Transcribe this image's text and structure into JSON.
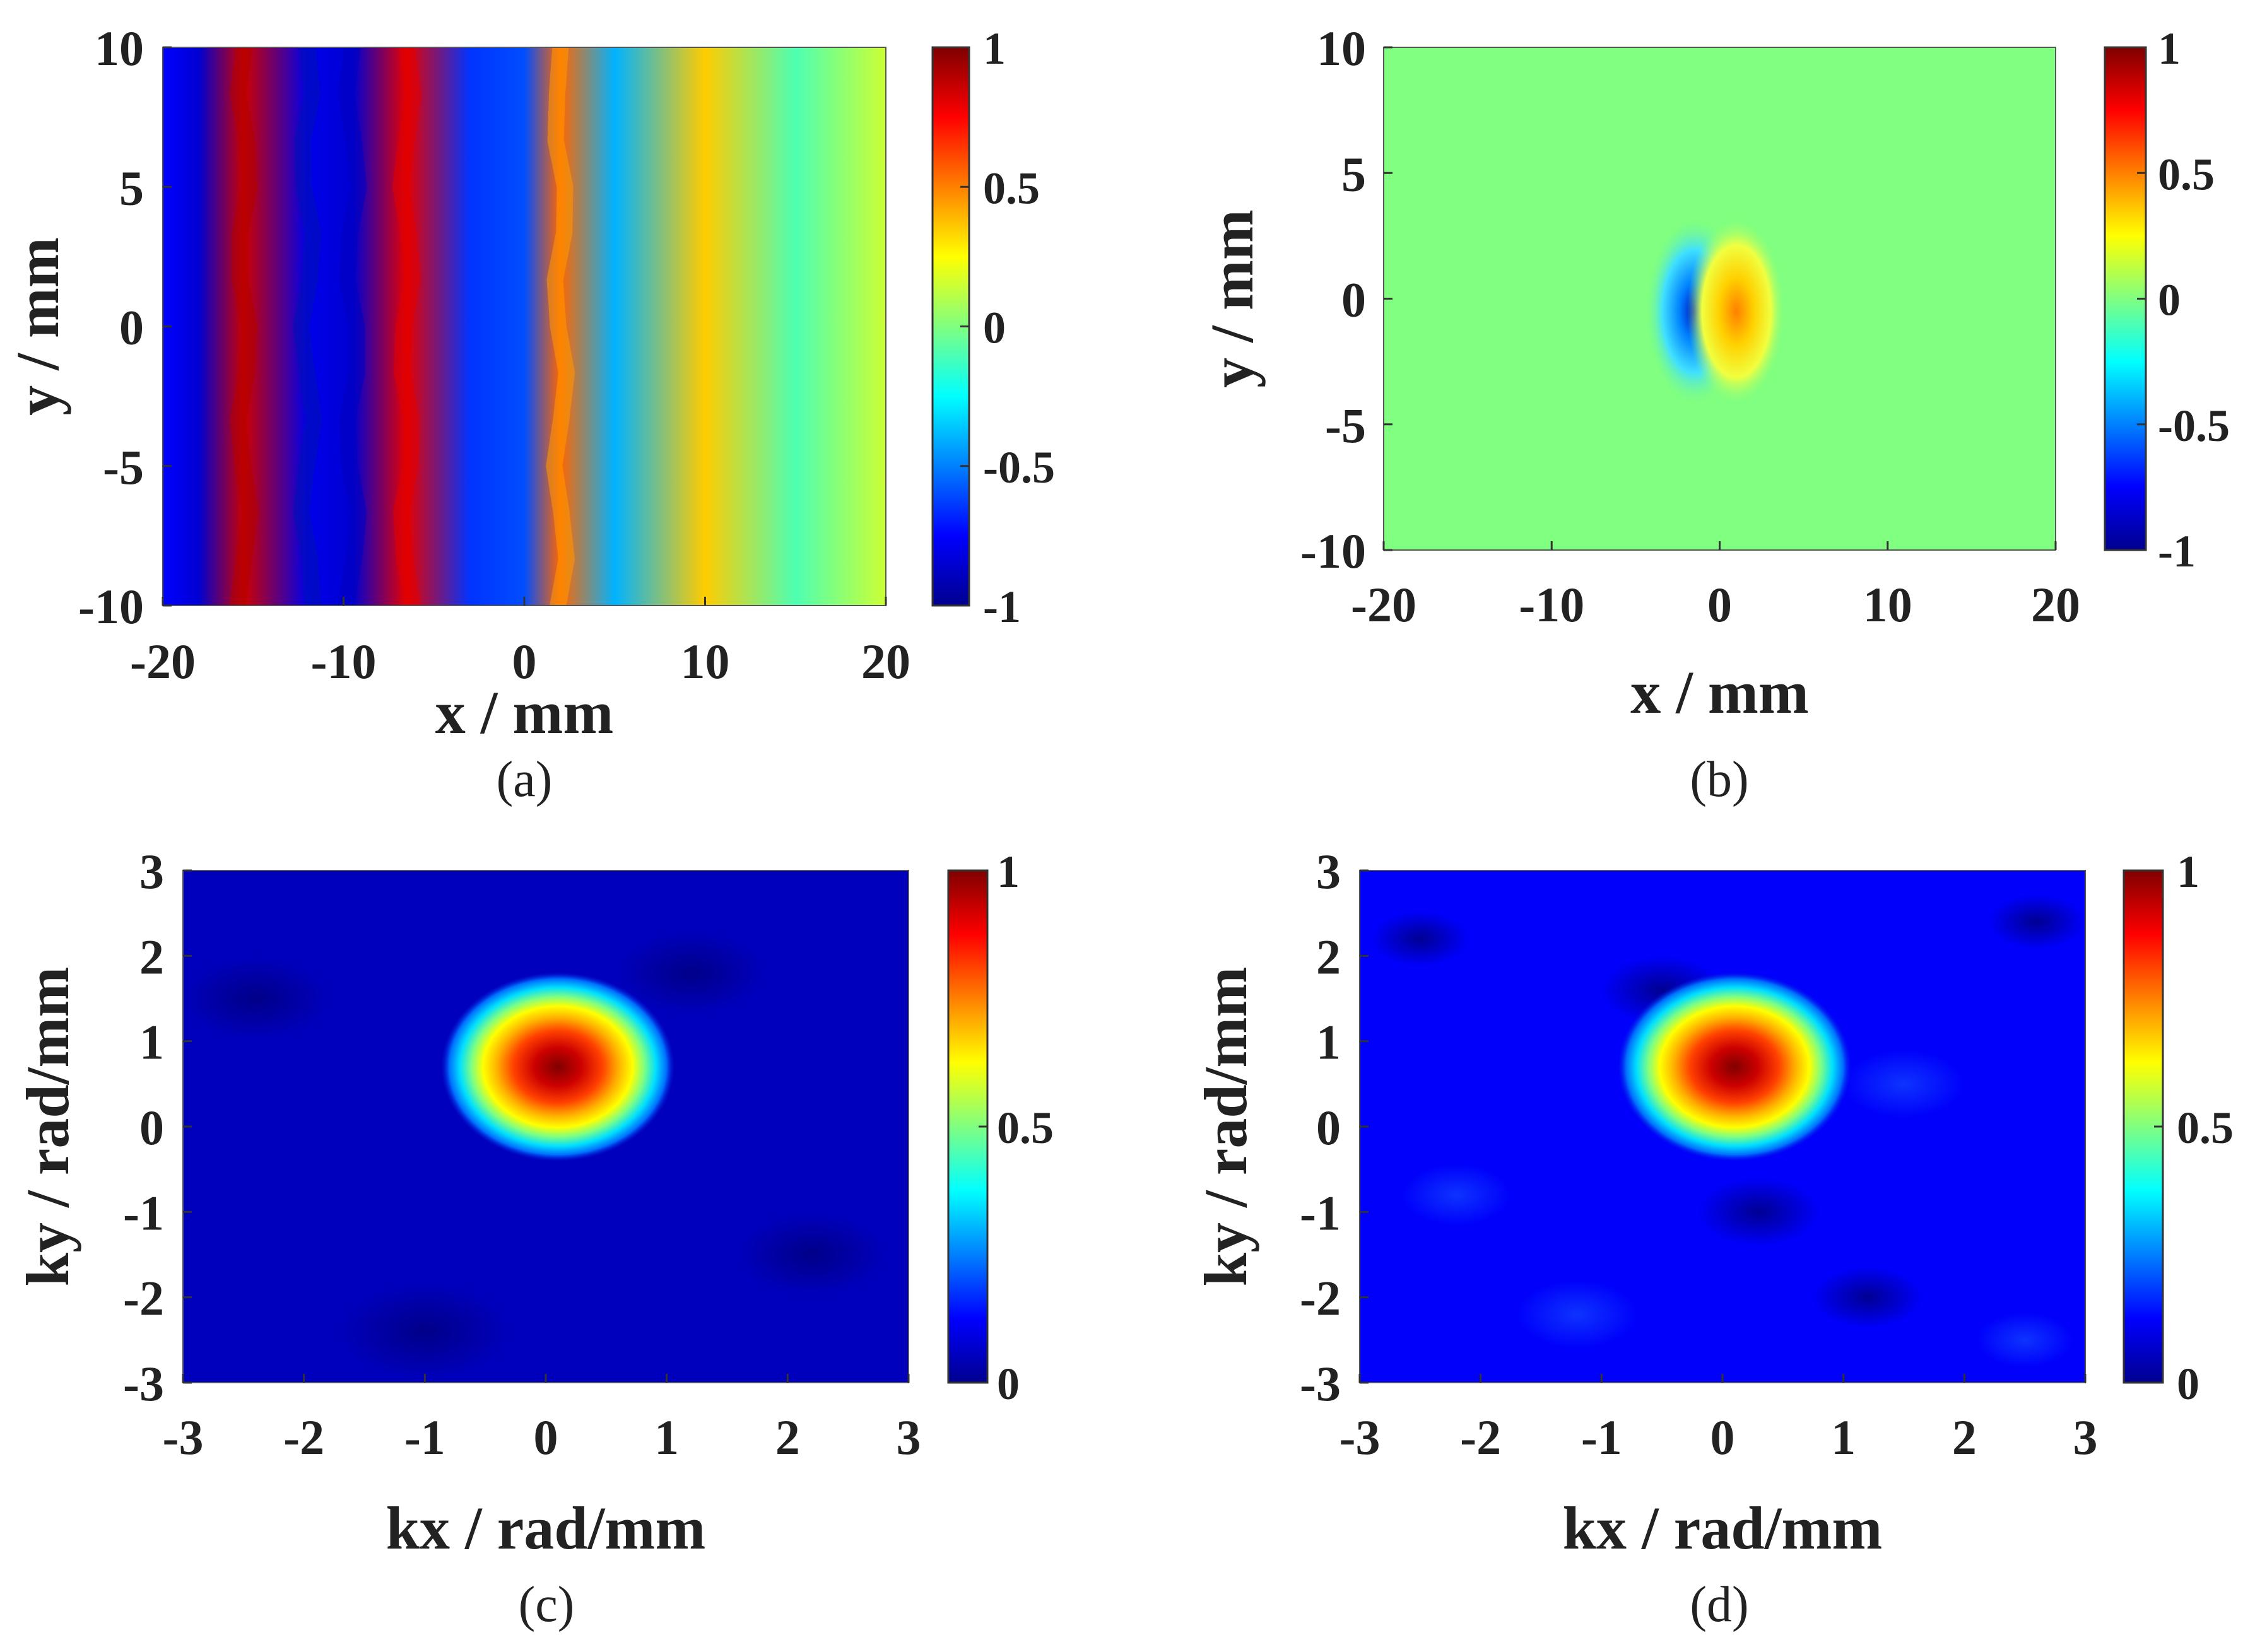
{
  "colormap": [
    "#00008f",
    "#0000ff",
    "#0080ff",
    "#00ffff",
    "#80ff80",
    "#ffff00",
    "#ff8000",
    "#ff0000",
    "#800000"
  ],
  "chart_data": [
    {
      "id": "a",
      "type": "heatmap",
      "panel_label": "(a)",
      "xlabel": "x / mm",
      "ylabel": "y / mm",
      "xlim": [
        -20,
        20
      ],
      "ylim": [
        -10,
        10
      ],
      "x_ticks": [
        "-20",
        "-10",
        "0",
        "10",
        "20"
      ],
      "y_ticks": [
        "10",
        "5",
        "0",
        "-5",
        "-10"
      ],
      "colorbar_range": [
        -1,
        1
      ],
      "colorbar_ticks": [
        "1",
        "0.5",
        "0",
        "-0.5",
        "-1"
      ],
      "field": "standing wave pattern along x, decaying amplitude for x > 5 mm",
      "profile_x": [
        -20,
        -18,
        -15.5,
        -12,
        -9.5,
        -6.5,
        -3,
        0,
        2,
        5,
        10,
        15,
        20
      ],
      "profile_values": [
        -0.75,
        -0.85,
        0.85,
        -0.8,
        -0.85,
        0.8,
        -0.65,
        -0.6,
        0.55,
        -0.4,
        0.35,
        -0.1,
        0.15
      ]
    },
    {
      "id": "b",
      "type": "heatmap",
      "panel_label": "(b)",
      "xlabel": "x / mm",
      "ylabel": "y / mm",
      "xlim": [
        -20,
        20
      ],
      "ylim": [
        -10,
        10
      ],
      "x_ticks": [
        "-20",
        "-10",
        "0",
        "10",
        "20"
      ],
      "y_ticks": [
        "10",
        "5",
        "0",
        "-5",
        "-10"
      ],
      "colorbar_range": [
        -1,
        1
      ],
      "colorbar_ticks": [
        "1",
        "0.5",
        "0",
        "-0.5",
        "-1"
      ],
      "field": "zero background with a dipole near origin",
      "features": [
        {
          "name": "negative lobe",
          "x": -1.5,
          "y": -0.5,
          "value": -0.9
        },
        {
          "name": "positive lobe",
          "x": 1,
          "y": -0.5,
          "value": 0.6
        }
      ]
    },
    {
      "id": "c",
      "type": "heatmap",
      "panel_label": "(c)",
      "xlabel": "kx / rad/mm",
      "ylabel": "ky / rad/mm",
      "xlim": [
        -3,
        3
      ],
      "ylim": [
        -3,
        3
      ],
      "x_ticks": [
        "-3",
        "-2",
        "-1",
        "0",
        "1",
        "2",
        "3"
      ],
      "y_ticks": [
        "3",
        "2",
        "1",
        "0",
        "-1",
        "-2",
        "-3"
      ],
      "colorbar_range": [
        0,
        1
      ],
      "colorbar_ticks": [
        "1",
        "0.5",
        "0"
      ],
      "field": "single spectral peak on near-zero background",
      "peak": {
        "kx": 0.1,
        "ky": 0.7,
        "value": 1.0
      },
      "background": 0.05
    },
    {
      "id": "d",
      "type": "heatmap",
      "panel_label": "(d)",
      "xlabel": "kx / rad/mm",
      "ylabel": "ky / rad/mm",
      "xlim": [
        -3,
        3
      ],
      "ylim": [
        -3,
        3
      ],
      "x_ticks": [
        "-3",
        "-2",
        "-1",
        "0",
        "1",
        "2",
        "3"
      ],
      "y_ticks": [
        "3",
        "2",
        "1",
        "0",
        "-1",
        "-2",
        "-3"
      ],
      "colorbar_range": [
        0,
        1
      ],
      "colorbar_ticks": [
        "1",
        "0.5",
        "0"
      ],
      "field": "single spectral peak with mottled background",
      "peak": {
        "kx": 0.1,
        "ky": 0.7,
        "value": 1.0
      },
      "background": 0.12
    }
  ]
}
